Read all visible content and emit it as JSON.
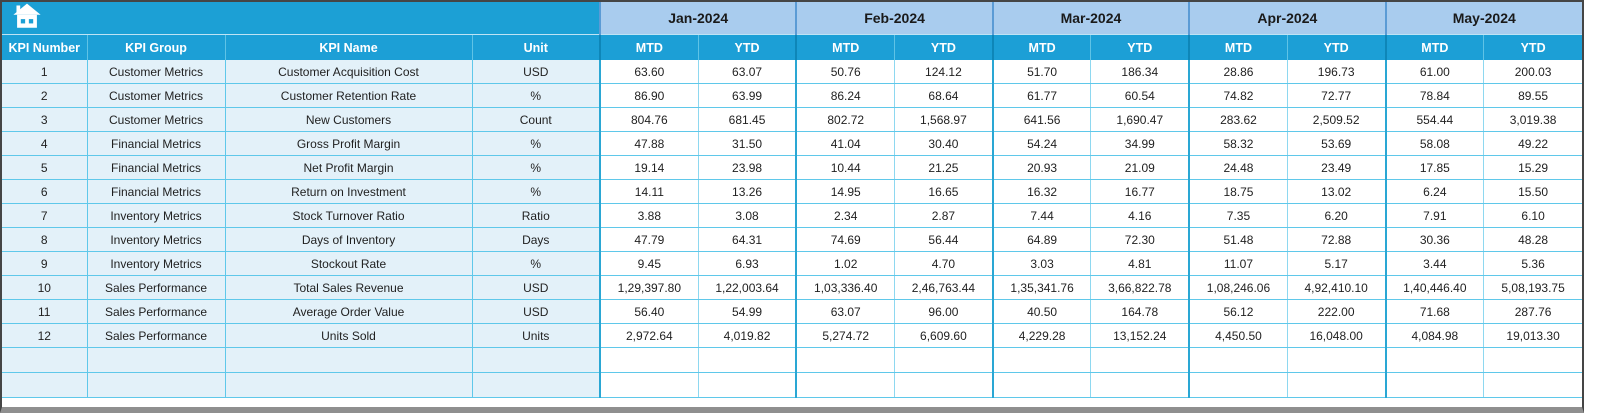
{
  "colors": {
    "header_cyan": "#1C9FD6",
    "corner_cyan": "#1CA0D5",
    "month_band_blue": "#A9CCEE",
    "left_cell_tint": "#E3F1F9",
    "grid_cyan": "#5FC8EA",
    "group_divider": "#0E86B8",
    "frame_dark": "#454545",
    "frame_bottom_gray": "#8F8F8F"
  },
  "columns": {
    "kpi_number": "KPI Number",
    "kpi_group": "KPI Group",
    "kpi_name": "KPI Name",
    "unit": "Unit"
  },
  "months": [
    "Jan-2024",
    "Feb-2024",
    "Mar-2024",
    "Apr-2024",
    "May-2024"
  ],
  "subheaders": {
    "mtd": "MTD",
    "ytd": "YTD"
  },
  "empty_row_count": 2,
  "rows": [
    {
      "number": "1",
      "group": "Customer Metrics",
      "name": "Customer Acquisition Cost",
      "unit": "USD",
      "values": [
        "63.60",
        "63.07",
        "50.76",
        "124.12",
        "51.70",
        "186.34",
        "28.86",
        "196.73",
        "61.00",
        "200.03"
      ]
    },
    {
      "number": "2",
      "group": "Customer Metrics",
      "name": "Customer Retention Rate",
      "unit": "%",
      "values": [
        "86.90",
        "63.99",
        "86.24",
        "68.64",
        "61.77",
        "60.54",
        "74.82",
        "72.77",
        "78.84",
        "89.55"
      ]
    },
    {
      "number": "3",
      "group": "Customer Metrics",
      "name": "New Customers",
      "unit": "Count",
      "values": [
        "804.76",
        "681.45",
        "802.72",
        "1,568.97",
        "641.56",
        "1,690.47",
        "283.62",
        "2,509.52",
        "554.44",
        "3,019.38"
      ]
    },
    {
      "number": "4",
      "group": "Financial Metrics",
      "name": "Gross Profit Margin",
      "unit": "%",
      "values": [
        "47.88",
        "31.50",
        "41.04",
        "30.40",
        "54.24",
        "34.99",
        "58.32",
        "53.69",
        "58.08",
        "49.22"
      ]
    },
    {
      "number": "5",
      "group": "Financial Metrics",
      "name": "Net Profit Margin",
      "unit": "%",
      "values": [
        "19.14",
        "23.98",
        "10.44",
        "21.25",
        "20.93",
        "21.09",
        "24.48",
        "23.49",
        "17.85",
        "15.29"
      ]
    },
    {
      "number": "6",
      "group": "Financial Metrics",
      "name": "Return on Investment",
      "unit": "%",
      "values": [
        "14.11",
        "13.26",
        "14.95",
        "16.65",
        "16.32",
        "16.77",
        "18.75",
        "13.02",
        "6.24",
        "15.50"
      ]
    },
    {
      "number": "7",
      "group": "Inventory Metrics",
      "name": "Stock Turnover Ratio",
      "unit": "Ratio",
      "values": [
        "3.88",
        "3.08",
        "2.34",
        "2.87",
        "7.44",
        "4.16",
        "7.35",
        "6.20",
        "7.91",
        "6.10"
      ]
    },
    {
      "number": "8",
      "group": "Inventory Metrics",
      "name": "Days of Inventory",
      "unit": "Days",
      "values": [
        "47.79",
        "64.31",
        "74.69",
        "56.44",
        "64.89",
        "72.30",
        "51.48",
        "72.88",
        "30.36",
        "48.28"
      ]
    },
    {
      "number": "9",
      "group": "Inventory Metrics",
      "name": "Stockout Rate",
      "unit": "%",
      "values": [
        "9.45",
        "6.93",
        "1.02",
        "4.70",
        "3.03",
        "4.81",
        "11.07",
        "5.17",
        "3.44",
        "5.36"
      ]
    },
    {
      "number": "10",
      "group": "Sales Performance",
      "name": "Total Sales Revenue",
      "unit": "USD",
      "values": [
        "1,29,397.80",
        "1,22,003.64",
        "1,03,336.40",
        "2,46,763.44",
        "1,35,341.76",
        "3,66,822.78",
        "1,08,246.06",
        "4,92,410.10",
        "1,40,446.40",
        "5,08,193.75"
      ]
    },
    {
      "number": "11",
      "group": "Sales Performance",
      "name": "Average Order Value",
      "unit": "USD",
      "values": [
        "56.40",
        "54.99",
        "63.07",
        "96.00",
        "40.50",
        "164.78",
        "56.12",
        "222.00",
        "71.68",
        "287.76"
      ]
    },
    {
      "number": "12",
      "group": "Sales Performance",
      "name": "Units Sold",
      "unit": "Units",
      "values": [
        "2,972.64",
        "4,019.82",
        "5,274.72",
        "6,609.60",
        "4,229.28",
        "13,152.24",
        "4,450.50",
        "16,048.00",
        "4,084.98",
        "19,013.30"
      ]
    }
  ]
}
